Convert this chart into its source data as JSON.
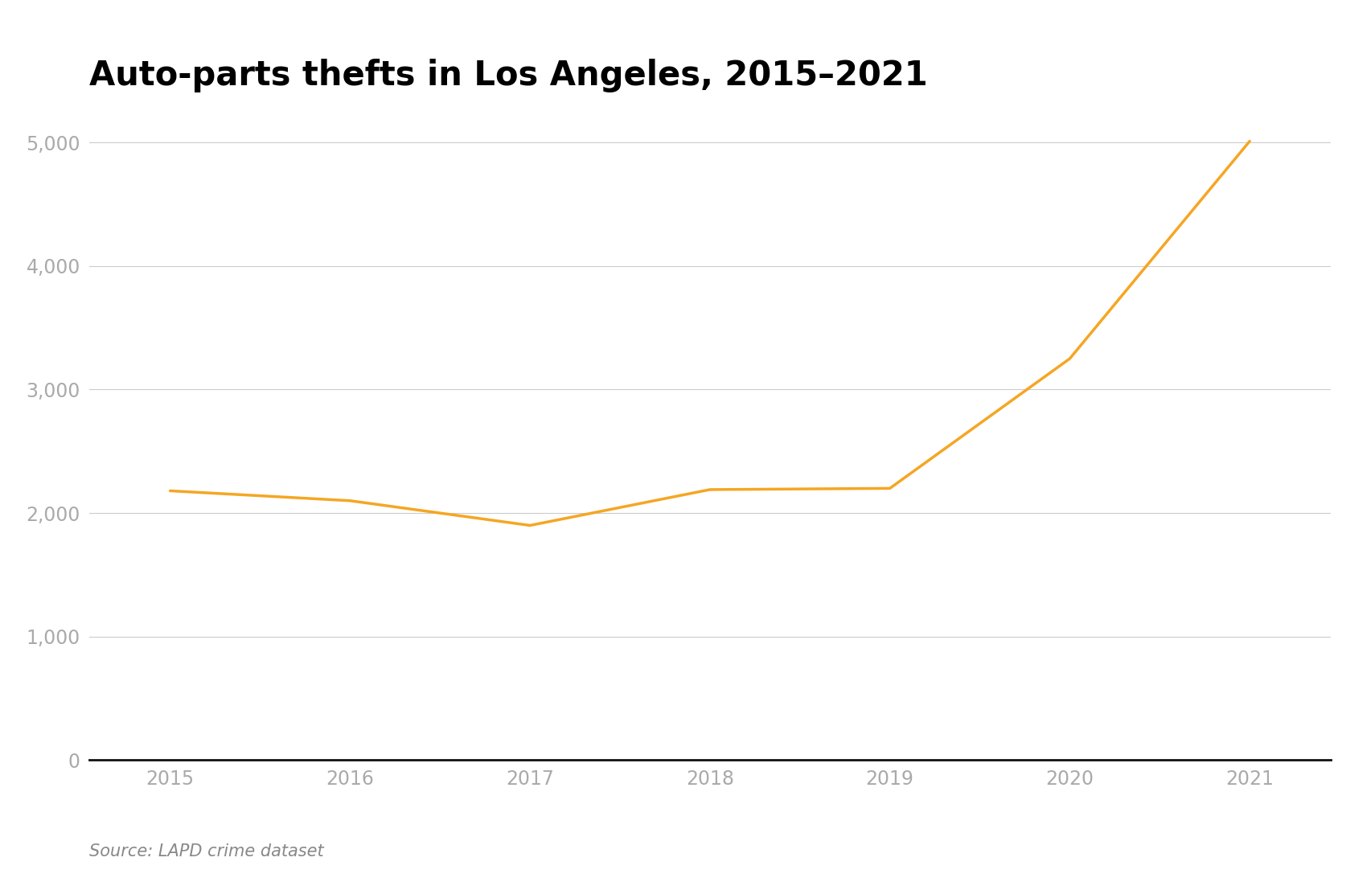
{
  "years": [
    2015,
    2016,
    2017,
    2018,
    2019,
    2020,
    2021
  ],
  "thefts": [
    2180,
    2100,
    1900,
    2190,
    2200,
    3250,
    5010
  ],
  "line_color": "#F5A623",
  "line_width": 2.5,
  "title": "Auto-parts thefts in Los Angeles, 2015–2021",
  "title_fontsize": 30,
  "title_fontweight": "bold",
  "source_text": "Source: LAPD crime dataset",
  "source_fontsize": 15,
  "yticks": [
    0,
    1000,
    2000,
    3000,
    4000,
    5000
  ],
  "ylim": [
    -30,
    5300
  ],
  "xlim": [
    2014.55,
    2021.45
  ],
  "background_color": "#ffffff",
  "grid_color": "#cccccc",
  "tick_label_color": "#aaaaaa",
  "tick_label_fontsize": 17,
  "spine_color": "#111111"
}
